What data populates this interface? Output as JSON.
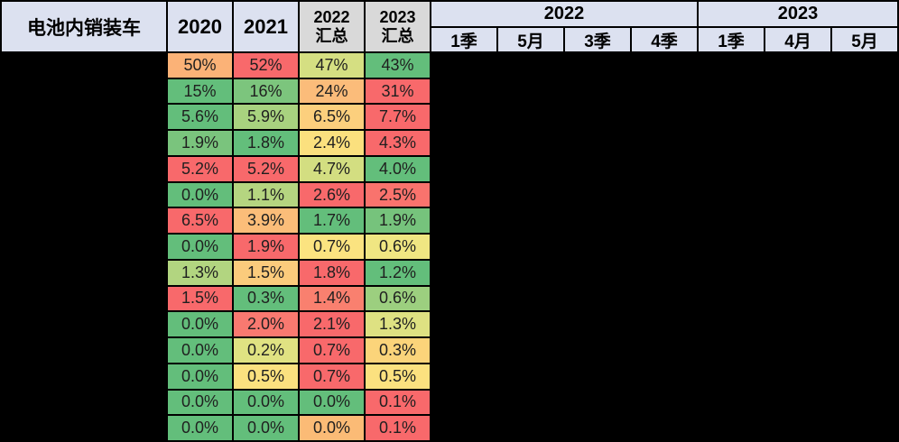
{
  "table": {
    "title": "电池内销装车",
    "year_columns": [
      "2020",
      "2021"
    ],
    "summary_columns": [
      {
        "year": "2022",
        "label": "汇总"
      },
      {
        "year": "2023",
        "label": "汇总"
      }
    ],
    "period_groups": [
      {
        "year": "2022",
        "periods": [
          "1季",
          "5月",
          "3季",
          "4季"
        ]
      },
      {
        "year": "2023",
        "periods": [
          "1季",
          "4月",
          "5月"
        ]
      }
    ],
    "header_bg": "#DCE1F0",
    "summary_bg": "#D9D9D9",
    "grid_color": "#000000",
    "row_labels_redacted": true,
    "period_values_redacted": true
  },
  "chart_data": {
    "type": "heatmap",
    "title": "电池内销装车",
    "columns": [
      "2020",
      "2021",
      "2022汇总",
      "2023汇总",
      "2022-1季",
      "2022-5月",
      "2022-3季",
      "2022-4季",
      "2023-1季",
      "2023-4月",
      "2023-5月"
    ],
    "visible_columns": [
      "2020",
      "2021",
      "2022汇总",
      "2023汇总"
    ],
    "row_labels_redacted": true,
    "color_scale": {
      "min": "#63BE7B",
      "mid": "#FFEB84",
      "max": "#F8696B"
    },
    "rows": [
      {
        "values": [
          "50%",
          "52%",
          "47%",
          "43%"
        ],
        "colors": [
          "#FBB277",
          "#F8696B",
          "#D5DF82",
          "#63BE7B"
        ]
      },
      {
        "values": [
          "15%",
          "16%",
          "24%",
          "31%"
        ],
        "colors": [
          "#63BE7B",
          "#7CC57D",
          "#FBBC7A",
          "#F8696B"
        ]
      },
      {
        "values": [
          "5.6%",
          "5.9%",
          "6.5%",
          "7.7%"
        ],
        "colors": [
          "#63BE7B",
          "#A8D27F",
          "#FCCF7D",
          "#F8696B"
        ]
      },
      {
        "values": [
          "1.9%",
          "1.8%",
          "2.4%",
          "4.3%"
        ],
        "colors": [
          "#7AC47D",
          "#63BE7B",
          "#FBE07E",
          "#F8696B"
        ]
      },
      {
        "values": [
          "5.2%",
          "5.2%",
          "4.7%",
          "4.0%"
        ],
        "colors": [
          "#F8696B",
          "#F8696B",
          "#D3DE81",
          "#63BE7B"
        ]
      },
      {
        "values": [
          "0.0%",
          "1.1%",
          "2.6%",
          "2.5%"
        ],
        "colors": [
          "#63BE7B",
          "#B5D580",
          "#F8696B",
          "#F9736D"
        ]
      },
      {
        "values": [
          "6.5%",
          "3.9%",
          "1.7%",
          "1.9%"
        ],
        "colors": [
          "#F8696B",
          "#FBBD79",
          "#63BE7B",
          "#76C37C"
        ]
      },
      {
        "values": [
          "0.0%",
          "1.9%",
          "0.7%",
          "0.6%"
        ],
        "colors": [
          "#63BE7B",
          "#F8696B",
          "#FBE380",
          "#F0E682"
        ]
      },
      {
        "values": [
          "1.3%",
          "1.5%",
          "1.8%",
          "1.2%"
        ],
        "colors": [
          "#B2D580",
          "#FBCB7C",
          "#F8696B",
          "#63BE7B"
        ]
      },
      {
        "values": [
          "1.5%",
          "0.3%",
          "1.4%",
          "0.6%"
        ],
        "colors": [
          "#F8696B",
          "#63BE7B",
          "#F9806F",
          "#9CCF7F"
        ]
      },
      {
        "values": [
          "0.0%",
          "2.0%",
          "2.1%",
          "1.3%"
        ],
        "colors": [
          "#63BE7B",
          "#F97970",
          "#F8696B",
          "#DEE182"
        ]
      },
      {
        "values": [
          "0.0%",
          "0.2%",
          "0.7%",
          "0.3%"
        ],
        "colors": [
          "#63BE7B",
          "#E0E282",
          "#F8696B",
          "#FBD47A"
        ]
      },
      {
        "values": [
          "0.0%",
          "0.5%",
          "0.7%",
          "0.5%"
        ],
        "colors": [
          "#63BE7B",
          "#FBE17F",
          "#F8696B",
          "#FBE17F"
        ]
      },
      {
        "values": [
          "0.0%",
          "0.0%",
          "0.0%",
          "0.1%"
        ],
        "colors": [
          "#63BE7B",
          "#63BE7B",
          "#63BE7B",
          "#F8696B"
        ]
      },
      {
        "values": [
          "0.0%",
          "0.0%",
          "0.0%",
          "0.1%"
        ],
        "colors": [
          "#63BE7B",
          "#63BE7B",
          "#FBBB76",
          "#F8696B"
        ]
      }
    ]
  }
}
